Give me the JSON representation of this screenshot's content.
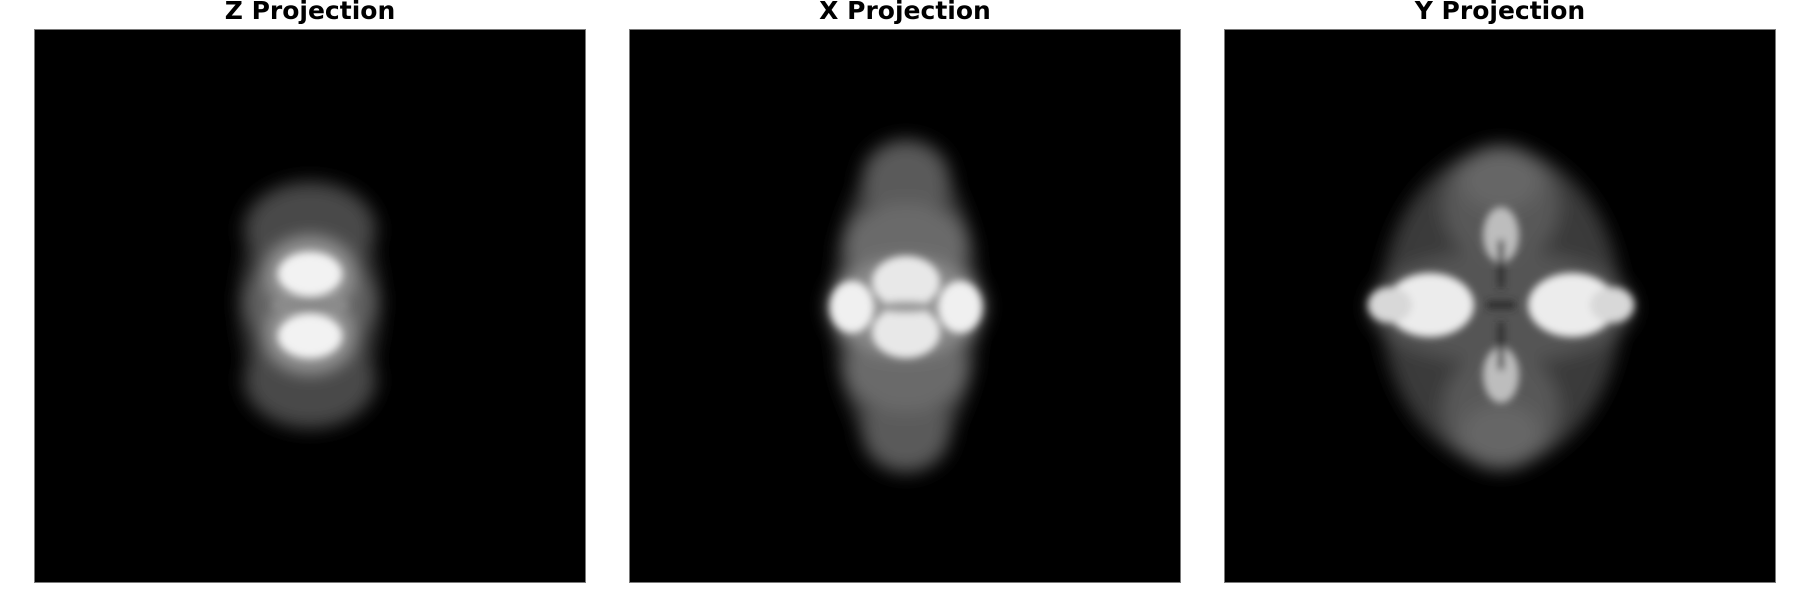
{
  "panels": [
    {
      "title": "Z Projection"
    },
    {
      "title": "X Projection"
    },
    {
      "title": "Y Projection"
    }
  ],
  "colors": {
    "background": "#000000",
    "signal": "#ffffff",
    "frame": "#7a7a7a"
  }
}
